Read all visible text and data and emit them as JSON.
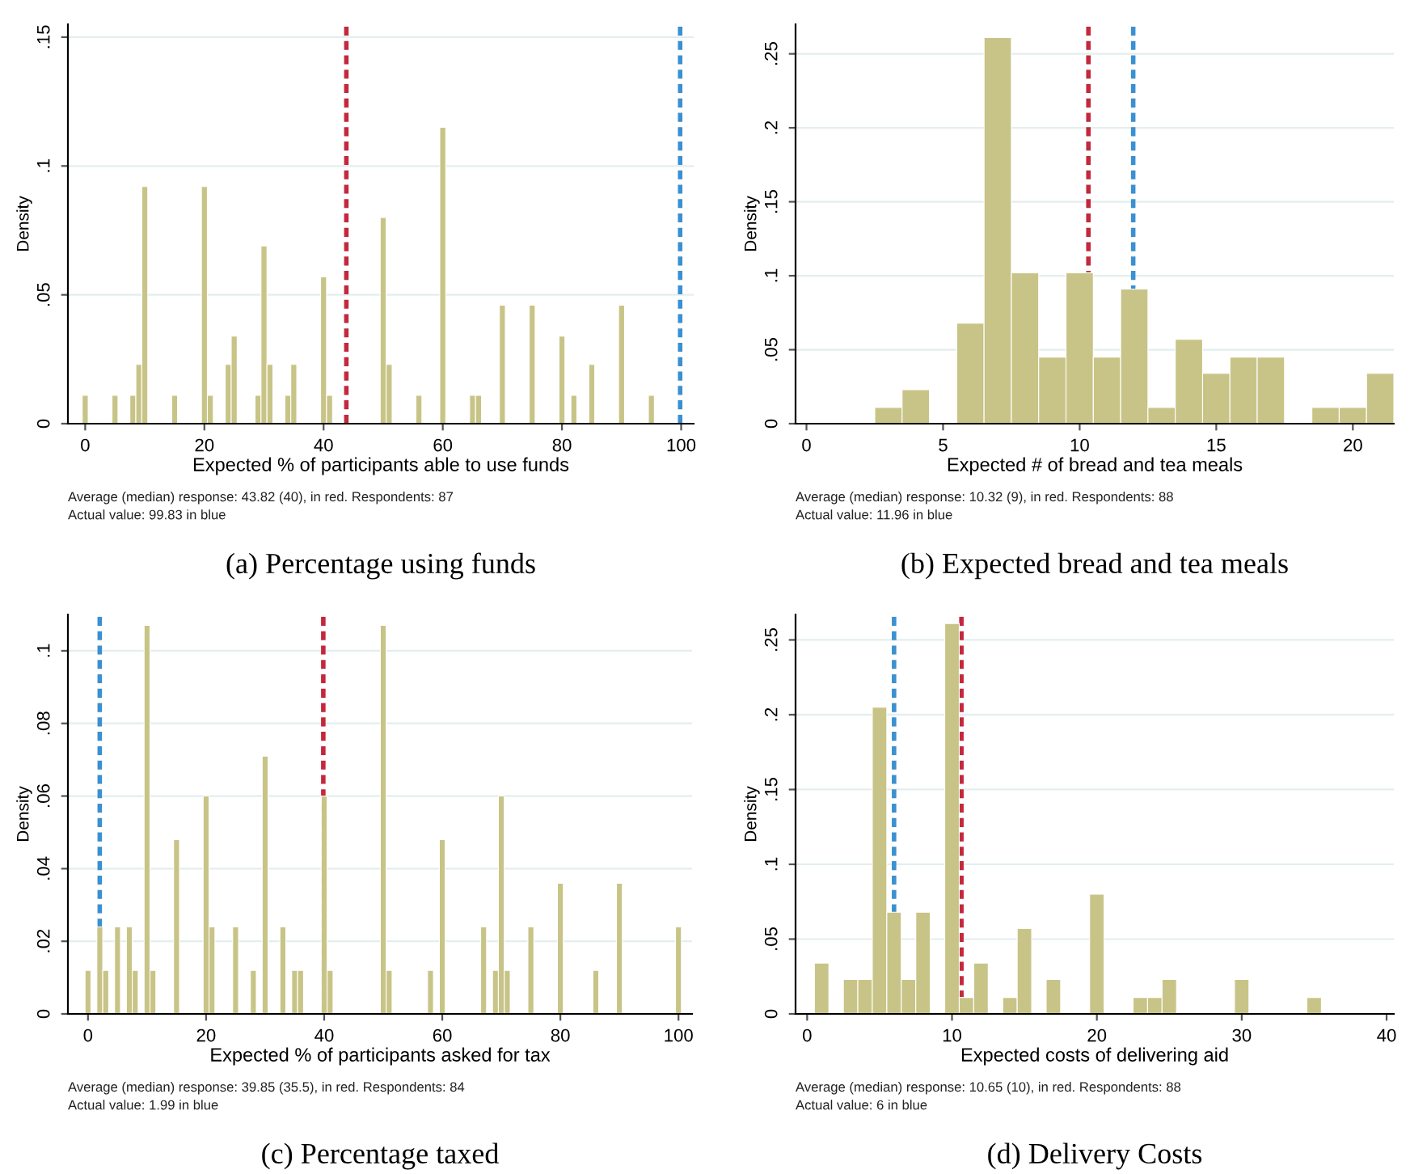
{
  "chart_data": [
    {
      "type": "histogram",
      "title": "(a) Percentage using funds",
      "xlabel": "Expected % of participants able to use funds",
      "ylabel": "Density",
      "color": "#c8c487",
      "grid": "y",
      "bins": [
        -0.5,
        0.5,
        4.5,
        5.5,
        7.5,
        8.5,
        9.5,
        10.5,
        14.5,
        15.5,
        19.5,
        20.5,
        21.5,
        23.5,
        24.5,
        25.5,
        28.5,
        29.5,
        30.5,
        31.5,
        33.5,
        34.5,
        35.5,
        39.5,
        40.5,
        41.5,
        49.5,
        50.5,
        51.5,
        55.5,
        56.5,
        59.5,
        60.5,
        64.5,
        65.5,
        66.5,
        69.5,
        70.5,
        74.5,
        75.5,
        79.5,
        80.5,
        81.5,
        82.5,
        84.5,
        85.5,
        89.5,
        90.5,
        94.5,
        95.5
      ],
      "values": [
        0.011,
        0,
        0.011,
        0,
        0.011,
        0.023,
        0.092,
        0,
        0.011,
        0,
        0.092,
        0.011,
        0,
        0.023,
        0.034,
        0,
        0.011,
        0.069,
        0.023,
        0,
        0.011,
        0.023,
        0,
        0.057,
        0.011,
        0,
        0.08,
        0.023,
        0,
        0.011,
        0,
        0.115,
        0,
        0.011,
        0.011,
        0,
        0.046,
        0,
        0.046,
        0,
        0.034,
        0,
        0.011,
        0,
        0.023,
        0,
        0.046,
        0,
        0.011
      ],
      "xlim": [
        -2.9,
        102.1
      ],
      "xticks": [
        0,
        20,
        40,
        60,
        80,
        100
      ],
      "ylim": [
        0,
        0.155
      ],
      "yticks": [
        0,
        {
          "value": 0.05,
          "label": ".05"
        },
        {
          "value": 0.1,
          "label": ".1"
        },
        {
          "value": 0.15,
          "label": ".15"
        }
      ],
      "ref_lines": [
        {
          "axis": "x",
          "value": 43.82,
          "color": "#c3283c",
          "line_style": "dashed"
        },
        {
          "axis": "x",
          "value": 99.83,
          "color": "#3a90d0",
          "line_style": "dashed"
        }
      ],
      "annotations": [
        "Average (median) response: 43.82 (40), in red. Respondents: 87",
        "Actual value: 99.83 in blue"
      ]
    },
    {
      "type": "histogram",
      "title": "(b) Expected bread and tea meals",
      "xlabel": "Expected # of bread and tea meals",
      "ylabel": "Density",
      "color": "#c8c487",
      "grid": "y",
      "bins": [
        2.5,
        3.5,
        4.5,
        5.5,
        6.5,
        7.5,
        8.5,
        9.5,
        10.5,
        11.5,
        12.5,
        13.5,
        14.5,
        15.5,
        16.5,
        17.5,
        18.5,
        19.5,
        20.5,
        21.5
      ],
      "values": [
        0.011,
        0.023,
        0,
        0.068,
        0.261,
        0.102,
        0.045,
        0.102,
        0.045,
        0.091,
        0.011,
        0.057,
        0.034,
        0.045,
        0.045,
        0,
        0.011,
        0.011,
        0.034
      ],
      "xlim": [
        -0.4,
        21.5
      ],
      "xticks": [
        0,
        5,
        10,
        15,
        20
      ],
      "ylim": [
        0,
        0.27
      ],
      "yticks": [
        0,
        {
          "value": 0.05,
          "label": ".05"
        },
        {
          "value": 0.1,
          "label": ".1"
        },
        {
          "value": 0.15,
          "label": ".15"
        },
        {
          "value": 0.2,
          "label": ".2"
        },
        {
          "value": 0.25,
          "label": ".25"
        }
      ],
      "ref_lines": [
        {
          "axis": "x",
          "value": 10.32,
          "color": "#c3283c",
          "line_style": "dashed"
        },
        {
          "axis": "x",
          "value": 11.96,
          "color": "#3a90d0",
          "line_style": "dashed"
        }
      ],
      "annotations": [
        "Average (median) response: 10.32 (9), in red. Respondents: 88",
        "Actual value: 11.96 in blue"
      ]
    },
    {
      "type": "histogram",
      "title": "(c) Percentage taxed",
      "xlabel": "Expected % of participants asked for tax",
      "ylabel": "Density",
      "color": "#c8c487",
      "grid": "y",
      "bins": [
        -0.5,
        0.5,
        1.5,
        2.5,
        3.5,
        4.5,
        5.5,
        6.5,
        7.5,
        8.5,
        9.5,
        10.5,
        11.5,
        14.5,
        15.5,
        19.5,
        20.5,
        21.5,
        24.5,
        25.5,
        27.5,
        28.5,
        29.5,
        30.5,
        32.5,
        33.5,
        34.5,
        35.5,
        36.5,
        39.5,
        40.5,
        41.5,
        49.5,
        50.5,
        51.5,
        57.5,
        58.5,
        59.5,
        60.5,
        66.5,
        67.5,
        68.5,
        69.5,
        70.5,
        71.5,
        74.5,
        75.5,
        79.5,
        80.5,
        85.5,
        86.5,
        89.5,
        90.5,
        99.5,
        100.5
      ],
      "values": [
        0.012,
        0,
        0.024,
        0.012,
        0,
        0.024,
        0,
        0.024,
        0.012,
        0,
        0.107,
        0.012,
        0,
        0.048,
        0,
        0.06,
        0.024,
        0,
        0.024,
        0,
        0.012,
        0,
        0.071,
        0,
        0.024,
        0,
        0.012,
        0.012,
        0,
        0.06,
        0.012,
        0,
        0.107,
        0.012,
        0,
        0.012,
        0,
        0.048,
        0,
        0.024,
        0,
        0.012,
        0.06,
        0.012,
        0,
        0.024,
        0,
        0.036,
        0,
        0.012,
        0,
        0.036,
        0,
        0.024
      ],
      "xlim": [
        -3.4,
        102.3
      ],
      "xticks": [
        0,
        20,
        40,
        60,
        80,
        100
      ],
      "ylim": [
        0,
        0.11
      ],
      "yticks": [
        0,
        {
          "value": 0.02,
          "label": ".02"
        },
        {
          "value": 0.04,
          "label": ".04"
        },
        {
          "value": 0.06,
          "label": ".06"
        },
        {
          "value": 0.08,
          "label": ".08"
        },
        {
          "value": 0.1,
          "label": ".1"
        }
      ],
      "ref_lines": [
        {
          "axis": "x",
          "value": 39.85,
          "color": "#c3283c",
          "line_style": "dashed"
        },
        {
          "axis": "x",
          "value": 1.99,
          "color": "#3a90d0",
          "line_style": "dashed"
        }
      ],
      "annotations": [
        "Average (median) response: 39.85 (35.5), in red. Respondents: 84",
        "Actual value: 1.99 in blue"
      ]
    },
    {
      "type": "histogram",
      "title": "(d) Delivery Costs",
      "xlabel": "Expected costs of delivering aid",
      "ylabel": "Density",
      "color": "#c8c487",
      "grid": "y",
      "bins": [
        0.5,
        1.5,
        2.5,
        3.5,
        4.5,
        5.5,
        6.5,
        7.5,
        8.5,
        9.5,
        10.5,
        11.5,
        12.5,
        13.5,
        14.5,
        15.5,
        16.5,
        17.5,
        19.5,
        20.5,
        22.5,
        23.5,
        24.5,
        25.5,
        29.5,
        30.5,
        34.5,
        35.5
      ],
      "values": [
        0.034,
        0,
        0.023,
        0.023,
        0.205,
        0.068,
        0.023,
        0.068,
        0,
        0.261,
        0.011,
        0.034,
        0,
        0.011,
        0.057,
        0,
        0.023,
        0,
        0.08,
        0,
        0.011,
        0.011,
        0.023,
        0,
        0.023,
        0,
        0.011
      ],
      "xlim": [
        -0.8,
        40.5
      ],
      "xticks": [
        0,
        10,
        20,
        30,
        40
      ],
      "ylim": [
        0,
        0.267
      ],
      "yticks": [
        0,
        {
          "value": 0.05,
          "label": ".05"
        },
        {
          "value": 0.1,
          "label": ".1"
        },
        {
          "value": 0.15,
          "label": ".15"
        },
        {
          "value": 0.2,
          "label": ".2"
        },
        {
          "value": 0.25,
          "label": ".25"
        }
      ],
      "ref_lines": [
        {
          "axis": "x",
          "value": 10.65,
          "color": "#c3283c",
          "line_style": "dashed"
        },
        {
          "axis": "x",
          "value": 6,
          "color": "#3a90d0",
          "line_style": "dashed"
        }
      ],
      "annotations": [
        "Average (median) response: 10.65 (10), in red. Respondents: 88",
        "Actual value: 6 in blue"
      ]
    }
  ]
}
